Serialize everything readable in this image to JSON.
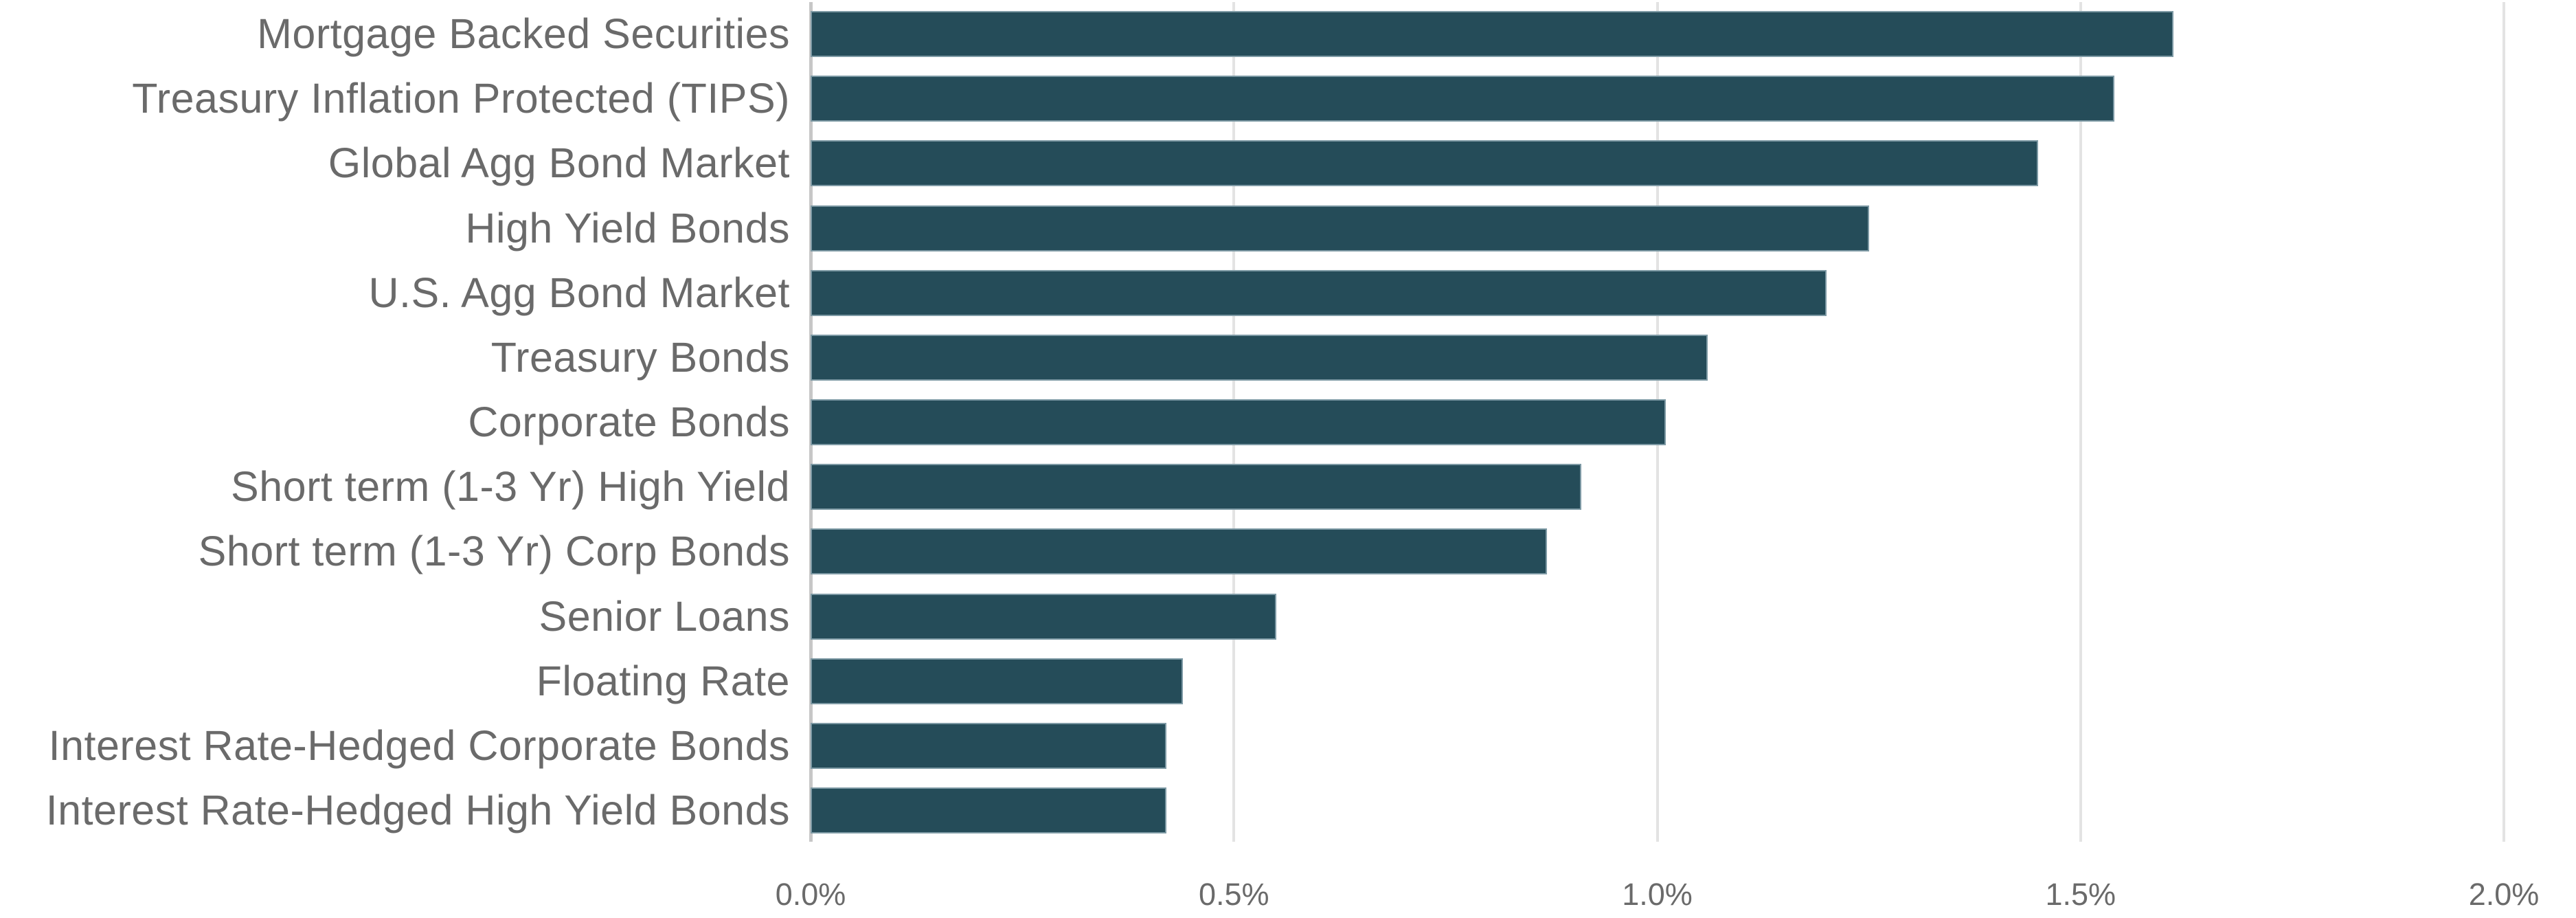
{
  "chart_data": {
    "type": "bar",
    "orientation": "horizontal",
    "title": "",
    "xlabel": "",
    "ylabel": "",
    "categories": [
      "Mortgage Backed Securities",
      "Treasury Inflation Protected (TIPS)",
      "Global Agg Bond Market",
      "High Yield Bonds",
      "U.S. Agg Bond Market",
      "Treasury Bonds",
      "Corporate Bonds",
      "Short term (1-3 Yr) High Yield",
      "Short term (1-3 Yr) Corp Bonds",
      "Senior Loans",
      "Floating Rate",
      "Interest Rate-Hedged Corporate Bonds",
      "Interest Rate-Hedged High Yield Bonds"
    ],
    "values": [
      1.61,
      1.54,
      1.45,
      1.25,
      1.2,
      1.06,
      1.01,
      0.91,
      0.87,
      0.55,
      0.44,
      0.42,
      0.42
    ],
    "unit": "%",
    "x_ticks": [
      "0.0%",
      "0.5%",
      "1.0%",
      "1.5%",
      "2.0%"
    ],
    "x_tick_values": [
      0.0,
      0.5,
      1.0,
      1.5,
      2.0
    ],
    "xlim": [
      0.0,
      2.0
    ],
    "grid": true,
    "legend": false,
    "colors": {
      "bar": "#254c59",
      "gridline": "#e3e3e3",
      "zero_axis_line": "#c7c7c7",
      "text": "#6a6a6a"
    }
  }
}
